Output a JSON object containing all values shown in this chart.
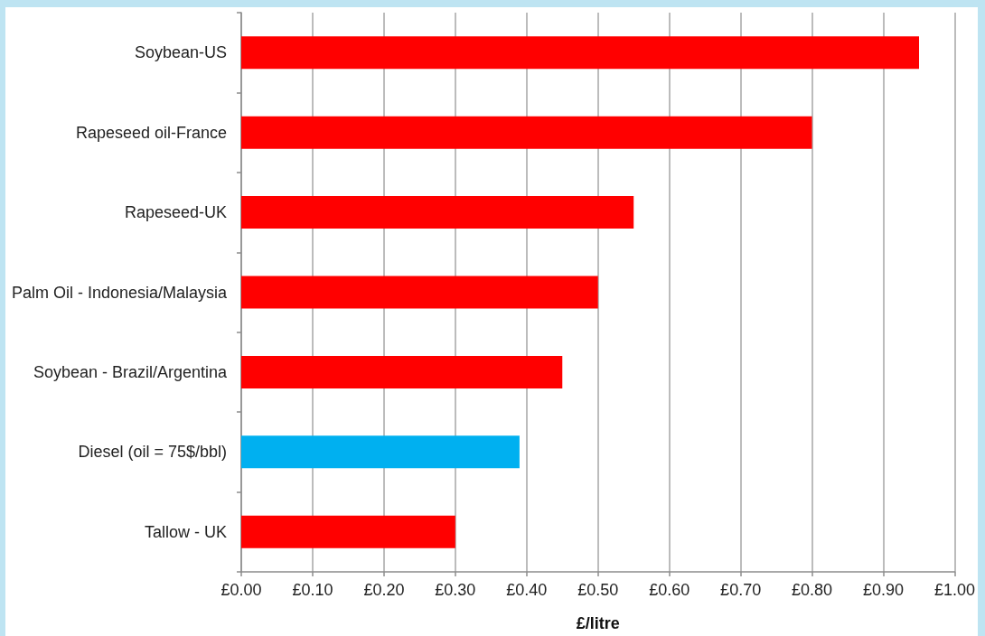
{
  "chart_data": {
    "type": "bar",
    "orientation": "horizontal",
    "categories": [
      "Soybean-US",
      "Rapeseed oil-France",
      "Rapeseed-UK",
      "Palm Oil - Indonesia/Malaysia",
      "Soybean - Brazil/Argentina",
      "Diesel (oil = 75$/bbl)",
      "Tallow - UK"
    ],
    "values": [
      0.95,
      0.8,
      0.55,
      0.5,
      0.45,
      0.39,
      0.3
    ],
    "colors": [
      "#ff0000",
      "#ff0000",
      "#ff0000",
      "#ff0000",
      "#ff0000",
      "#00b0f0",
      "#ff0000"
    ],
    "xlabel": "£/litre",
    "xlim": [
      0,
      1
    ],
    "xticks": [
      {
        "value": 0,
        "label": "£0.00"
      },
      {
        "value": 0.1,
        "label": "£0.10"
      },
      {
        "value": 0.2,
        "label": "£0.20"
      },
      {
        "value": 0.3,
        "label": "£0.30"
      },
      {
        "value": 0.4,
        "label": "£0.40"
      },
      {
        "value": 0.5,
        "label": "£0.50"
      },
      {
        "value": 0.6,
        "label": "£0.60"
      },
      {
        "value": 0.7,
        "label": "£0.70"
      },
      {
        "value": 0.8,
        "label": "£0.80"
      },
      {
        "value": 0.9,
        "label": "£0.90"
      },
      {
        "value": 1,
        "label": "£1.00"
      }
    ],
    "grid": "x"
  }
}
